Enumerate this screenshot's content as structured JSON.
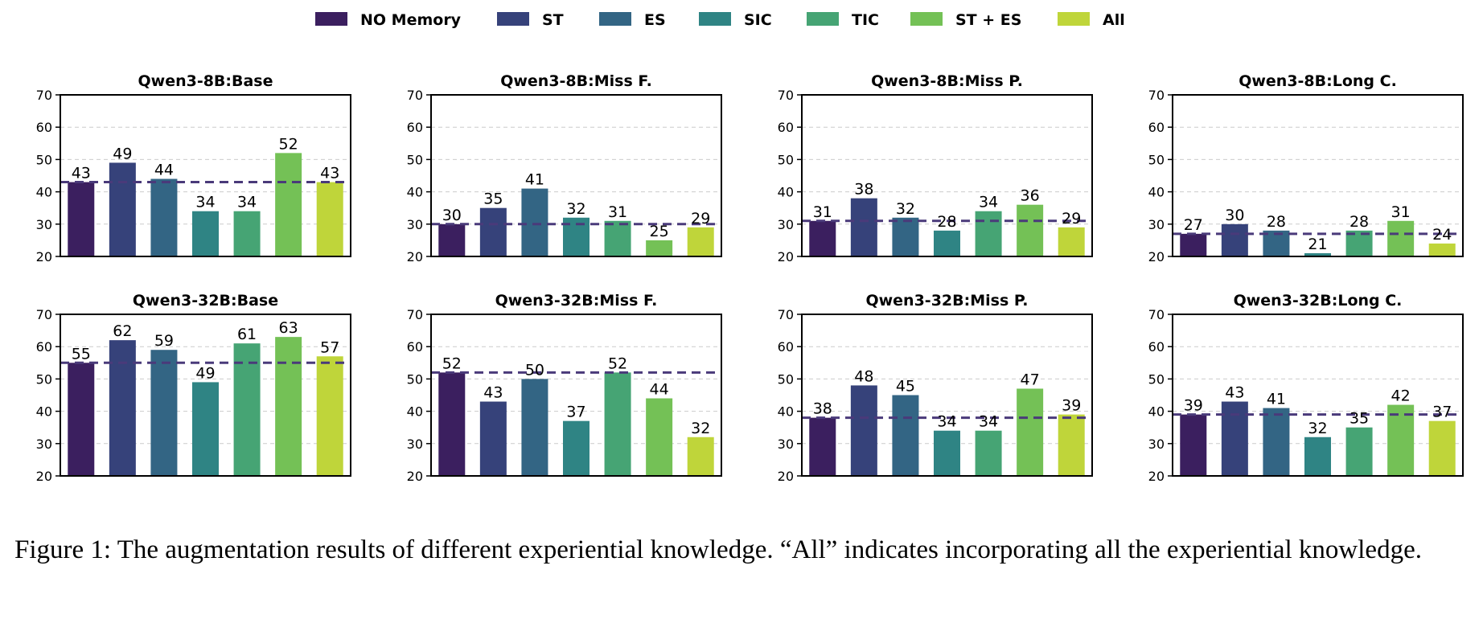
{
  "chart_data": {
    "type": "bar",
    "ylim": [
      20,
      70
    ],
    "yticks": [
      20,
      30,
      40,
      50,
      60,
      70
    ],
    "grid": true,
    "legend_position": "top-center",
    "series": [
      {
        "name": "NO Memory",
        "color": "#3b1f5f"
      },
      {
        "name": "ST",
        "color": "#36427a"
      },
      {
        "name": "ES",
        "color": "#336584"
      },
      {
        "name": "SIC",
        "color": "#2f8484"
      },
      {
        "name": "TIC",
        "color": "#46a474"
      },
      {
        "name": "ST + ES",
        "color": "#74c156"
      },
      {
        "name": "All",
        "color": "#bfd53a"
      }
    ],
    "baseline_color": "#4a3a7a",
    "panels": [
      {
        "title": "Qwen3-8B:Base",
        "values": [
          43,
          49,
          44,
          34,
          34,
          52,
          43
        ]
      },
      {
        "title": "Qwen3-8B:Miss F.",
        "values": [
          30,
          35,
          41,
          32,
          31,
          25,
          29
        ]
      },
      {
        "title": "Qwen3-8B:Miss P.",
        "values": [
          31,
          38,
          32,
          28,
          34,
          36,
          29
        ]
      },
      {
        "title": "Qwen3-8B:Long C.",
        "values": [
          27,
          30,
          28,
          21,
          28,
          31,
          24
        ]
      },
      {
        "title": "Qwen3-32B:Base",
        "values": [
          55,
          62,
          59,
          49,
          61,
          63,
          57
        ]
      },
      {
        "title": "Qwen3-32B:Miss F.",
        "values": [
          52,
          43,
          50,
          37,
          52,
          44,
          32
        ]
      },
      {
        "title": "Qwen3-32B:Miss P.",
        "values": [
          38,
          48,
          45,
          34,
          34,
          47,
          39
        ]
      },
      {
        "title": "Qwen3-32B:Long C.",
        "values": [
          39,
          43,
          41,
          32,
          35,
          42,
          37
        ]
      }
    ]
  },
  "caption": "Figure 1: The augmentation results of different experiential knowledge. “All” indicates incorporating all the experiential knowledge."
}
